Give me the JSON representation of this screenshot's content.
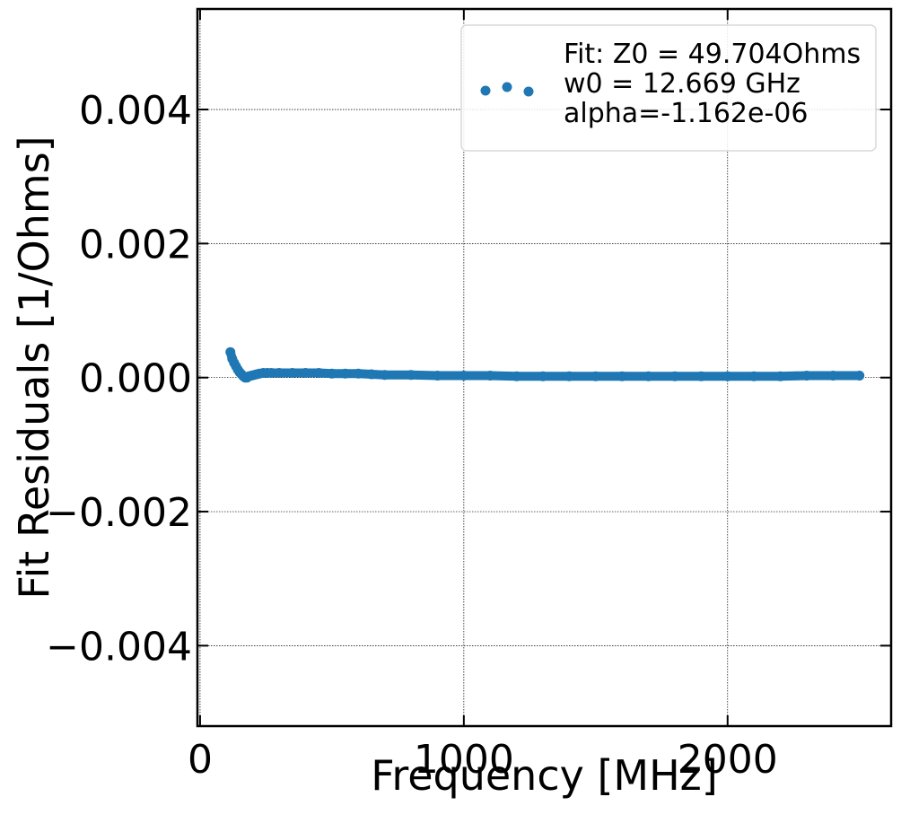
{
  "chart_data": {
    "type": "scatter",
    "xlabel": "Frequency [MHz]",
    "ylabel": "Fit Residuals [1/Ohms]",
    "xlim": [
      -10,
      2620
    ],
    "ylim": [
      -0.0052,
      0.0055
    ],
    "x_ticks": [
      0,
      1000,
      2000
    ],
    "x_tick_labels": [
      "0",
      "1000",
      "2000"
    ],
    "y_ticks": [
      0.004,
      0.002,
      0.0,
      -0.002,
      -0.004
    ],
    "y_tick_labels": [
      "0.004",
      "0.002",
      "0.000",
      "−0.002",
      "−0.004"
    ],
    "grid": true,
    "legend_position": "top-right",
    "series": [
      {
        "name": "Fit: Z0 = 49.704Ohms\nw0 = 12.669 GHz\nalpha=-1.162e-06",
        "color": "#1f77b4",
        "points": {
          "x": [
            115,
            122,
            129,
            136,
            143,
            150,
            157,
            164,
            171,
            178,
            185,
            195,
            205,
            215,
            225,
            240,
            255,
            270,
            300,
            350,
            400,
            450,
            500,
            550,
            600,
            650,
            700,
            800,
            900,
            1000,
            1100,
            1200,
            1300,
            1400,
            1500,
            1600,
            1700,
            1800,
            1900,
            2000,
            2100,
            2200,
            2300,
            2400,
            2500
          ],
          "y": [
            0.00038,
            0.00028,
            0.00022,
            0.00017,
            0.00012,
            8e-05,
            5e-05,
            2e-05,
            0.0,
            0.0,
            2e-05,
            3e-05,
            4e-05,
            5e-05,
            6e-05,
            7e-05,
            7e-05,
            7e-05,
            7e-05,
            7e-05,
            7e-05,
            7e-05,
            6e-05,
            6e-05,
            6e-05,
            5e-05,
            4e-05,
            4e-05,
            3e-05,
            3e-05,
            3e-05,
            2e-05,
            2e-05,
            2e-05,
            2e-05,
            2e-05,
            2e-05,
            2e-05,
            2e-05,
            2e-05,
            2e-05,
            2e-05,
            3e-05,
            3e-05,
            3e-05
          ]
        }
      }
    ]
  }
}
